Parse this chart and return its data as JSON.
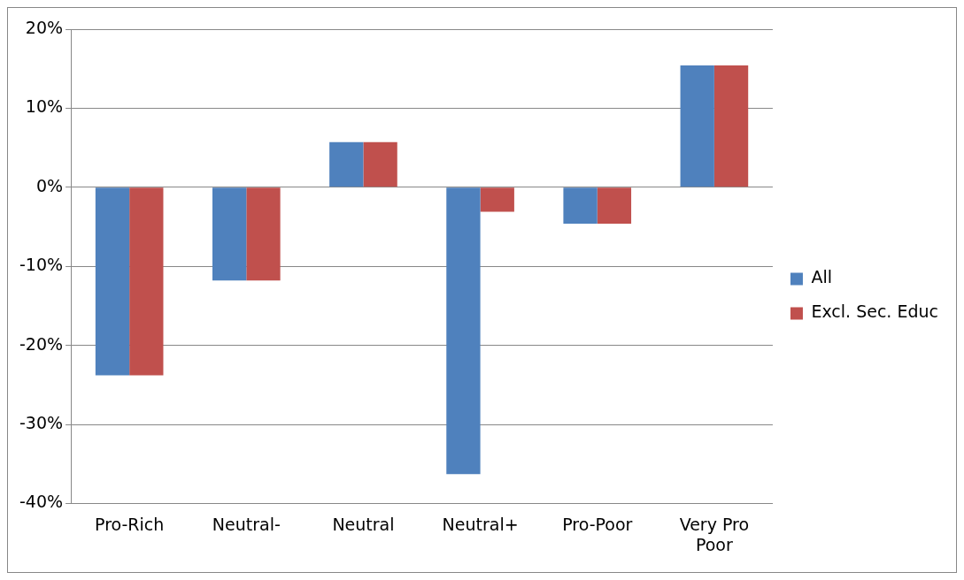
{
  "chart_data": {
    "type": "bar",
    "categories": [
      "Pro-Rich",
      "Neutral-",
      "Neutral",
      "Neutral+",
      "Pro-Poor",
      "Very Pro Poor"
    ],
    "series": [
      {
        "name": "All",
        "color": "#4f81bd",
        "values": [
          -23.8,
          -11.8,
          5.7,
          -36.3,
          -4.6,
          15.4
        ]
      },
      {
        "name": "Excl. Sec. Educ",
        "color": "#c0504d",
        "values": [
          -23.8,
          -11.8,
          5.7,
          -3.1,
          -4.6,
          15.4
        ]
      }
    ],
    "ylim": [
      -40,
      20
    ],
    "yticks": [
      {
        "value": -40,
        "label": "-40%"
      },
      {
        "value": -30,
        "label": "-30%"
      },
      {
        "value": -20,
        "label": "-20%"
      },
      {
        "value": -10,
        "label": "-10%"
      },
      {
        "value": 0,
        "label": "0%"
      },
      {
        "value": 10,
        "label": "10%"
      },
      {
        "value": 20,
        "label": "20%"
      }
    ],
    "grid": "y",
    "legend": "right"
  }
}
